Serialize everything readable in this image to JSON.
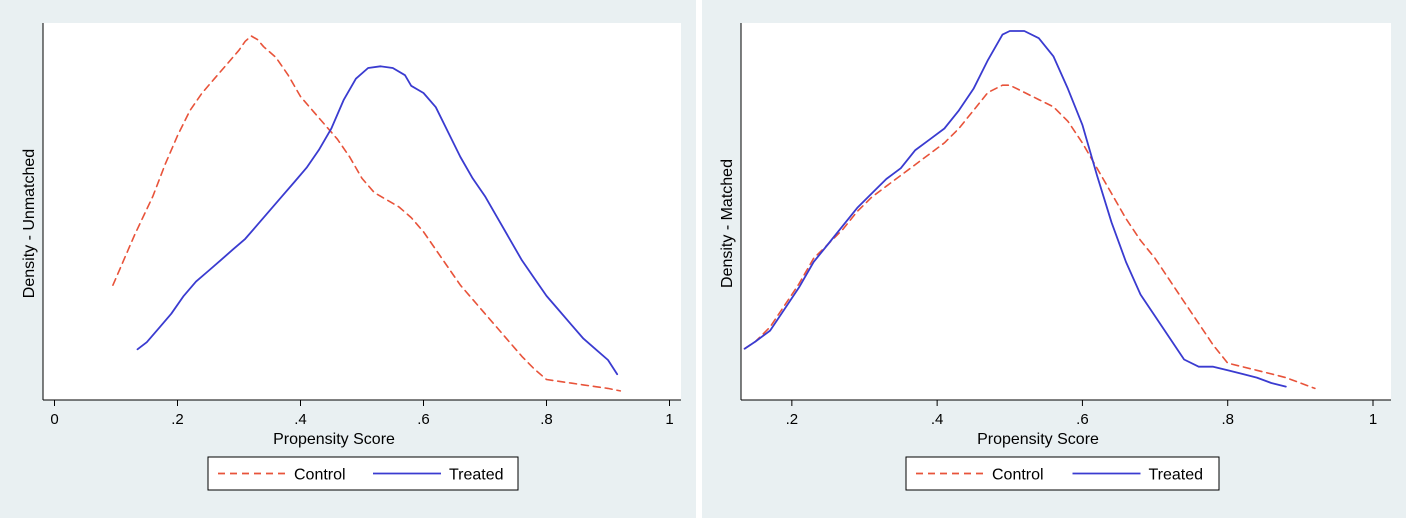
{
  "colors": {
    "control": "#e8533a",
    "treated": "#3a3bd0",
    "outer_background": "#e9f0f2",
    "plot_background": "#ffffff",
    "axis": "#000000"
  },
  "chart_data": [
    {
      "type": "line",
      "title": "",
      "xlabel": "Propensity Score",
      "ylabel": "Density - Unmatched",
      "xlim": [
        0,
        1
      ],
      "ylim": [
        0,
        1
      ],
      "x_ticks": [
        0,
        0.2,
        0.4,
        0.6,
        0.8,
        1
      ],
      "x_tick_labels": [
        "0",
        ".2",
        ".4",
        ".6",
        ".8",
        "1"
      ],
      "grid": false,
      "legend": [
        "Control",
        "Treated"
      ],
      "legend_position": "bottom-center",
      "series": [
        {
          "name": "Control",
          "style": "dashed",
          "x": [
            0.095,
            0.13,
            0.16,
            0.18,
            0.2,
            0.22,
            0.24,
            0.26,
            0.28,
            0.3,
            0.31,
            0.32,
            0.33,
            0.34,
            0.36,
            0.38,
            0.4,
            0.42,
            0.44,
            0.46,
            0.48,
            0.5,
            0.52,
            0.54,
            0.56,
            0.58,
            0.6,
            0.62,
            0.64,
            0.66,
            0.68,
            0.7,
            0.72,
            0.74,
            0.76,
            0.78,
            0.8,
            0.82,
            0.84,
            0.86,
            0.88,
            0.9,
            0.92
          ],
          "y": [
            0.3,
            0.44,
            0.55,
            0.64,
            0.72,
            0.79,
            0.84,
            0.88,
            0.92,
            0.96,
            0.985,
            1.0,
            0.99,
            0.97,
            0.94,
            0.89,
            0.83,
            0.79,
            0.75,
            0.71,
            0.66,
            0.6,
            0.56,
            0.54,
            0.52,
            0.49,
            0.45,
            0.4,
            0.35,
            0.3,
            0.26,
            0.22,
            0.18,
            0.14,
            0.1,
            0.065,
            0.035,
            0.03,
            0.025,
            0.02,
            0.015,
            0.01,
            0.003
          ]
        },
        {
          "name": "Treated",
          "style": "solid",
          "x": [
            0.135,
            0.15,
            0.17,
            0.19,
            0.21,
            0.23,
            0.25,
            0.27,
            0.29,
            0.31,
            0.33,
            0.35,
            0.37,
            0.39,
            0.41,
            0.43,
            0.45,
            0.47,
            0.49,
            0.51,
            0.53,
            0.55,
            0.57,
            0.58,
            0.59,
            0.6,
            0.62,
            0.64,
            0.66,
            0.68,
            0.7,
            0.72,
            0.74,
            0.76,
            0.78,
            0.8,
            0.82,
            0.84,
            0.86,
            0.88,
            0.9,
            0.915
          ],
          "y": [
            0.12,
            0.14,
            0.18,
            0.22,
            0.27,
            0.31,
            0.34,
            0.37,
            0.4,
            0.43,
            0.47,
            0.51,
            0.55,
            0.59,
            0.63,
            0.68,
            0.74,
            0.82,
            0.88,
            0.91,
            0.915,
            0.91,
            0.89,
            0.86,
            0.85,
            0.84,
            0.8,
            0.73,
            0.66,
            0.6,
            0.55,
            0.49,
            0.43,
            0.37,
            0.32,
            0.27,
            0.23,
            0.19,
            0.15,
            0.12,
            0.09,
            0.05
          ]
        }
      ]
    },
    {
      "type": "line",
      "title": "",
      "xlabel": "Propensity Score",
      "ylabel": "Density - Matched",
      "xlim": [
        0.13,
        1.0
      ],
      "ylim": [
        0,
        1
      ],
      "x_ticks": [
        0.2,
        0.4,
        0.6,
        0.8,
        1
      ],
      "x_tick_labels": [
        ".2",
        ".4",
        ".6",
        ".8",
        "1"
      ],
      "grid": false,
      "legend": [
        "Control",
        "Treated"
      ],
      "legend_position": "bottom-center",
      "series": [
        {
          "name": "Control",
          "style": "dashed",
          "x": [
            0.135,
            0.15,
            0.17,
            0.19,
            0.21,
            0.23,
            0.25,
            0.27,
            0.29,
            0.31,
            0.33,
            0.35,
            0.37,
            0.39,
            0.41,
            0.43,
            0.45,
            0.47,
            0.49,
            0.5,
            0.52,
            0.54,
            0.56,
            0.58,
            0.6,
            0.62,
            0.64,
            0.66,
            0.68,
            0.7,
            0.72,
            0.74,
            0.76,
            0.78,
            0.8,
            0.82,
            0.84,
            0.86,
            0.88,
            0.9,
            0.92
          ],
          "y": [
            0.12,
            0.14,
            0.18,
            0.24,
            0.3,
            0.37,
            0.41,
            0.45,
            0.5,
            0.54,
            0.57,
            0.6,
            0.63,
            0.66,
            0.69,
            0.73,
            0.78,
            0.83,
            0.85,
            0.85,
            0.83,
            0.81,
            0.79,
            0.75,
            0.69,
            0.62,
            0.55,
            0.48,
            0.42,
            0.37,
            0.31,
            0.25,
            0.19,
            0.13,
            0.08,
            0.07,
            0.06,
            0.05,
            0.04,
            0.025,
            0.01
          ]
        },
        {
          "name": "Treated",
          "style": "solid",
          "x": [
            0.135,
            0.15,
            0.17,
            0.19,
            0.21,
            0.23,
            0.25,
            0.27,
            0.29,
            0.31,
            0.33,
            0.35,
            0.37,
            0.39,
            0.41,
            0.43,
            0.45,
            0.47,
            0.49,
            0.5,
            0.52,
            0.54,
            0.56,
            0.58,
            0.6,
            0.62,
            0.64,
            0.66,
            0.68,
            0.7,
            0.72,
            0.74,
            0.76,
            0.78,
            0.8,
            0.82,
            0.84,
            0.86,
            0.88
          ],
          "y": [
            0.12,
            0.14,
            0.17,
            0.23,
            0.29,
            0.36,
            0.41,
            0.46,
            0.51,
            0.55,
            0.59,
            0.62,
            0.67,
            0.7,
            0.73,
            0.78,
            0.84,
            0.92,
            0.99,
            1.0,
            1.0,
            0.98,
            0.93,
            0.84,
            0.74,
            0.6,
            0.47,
            0.36,
            0.27,
            0.21,
            0.15,
            0.09,
            0.07,
            0.07,
            0.06,
            0.05,
            0.04,
            0.025,
            0.015
          ]
        }
      ]
    }
  ]
}
